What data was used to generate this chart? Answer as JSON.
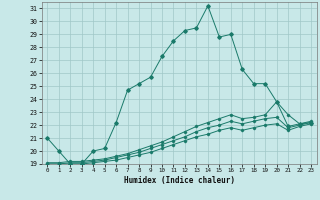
{
  "xlabel": "Humidex (Indice chaleur)",
  "ylabel": "",
  "bg_color": "#c8e8e8",
  "grid_color": "#a0c8c8",
  "line_color": "#1a7a6a",
  "xlim": [
    -0.5,
    23.5
  ],
  "ylim": [
    19,
    31.5
  ],
  "xticks": [
    0,
    1,
    2,
    3,
    4,
    5,
    6,
    7,
    8,
    9,
    10,
    11,
    12,
    13,
    14,
    15,
    16,
    17,
    18,
    19,
    20,
    21,
    22,
    23
  ],
  "yticks": [
    19,
    20,
    21,
    22,
    23,
    24,
    25,
    26,
    27,
    28,
    29,
    30,
    31
  ],
  "series1_x": [
    0,
    1,
    2,
    3,
    4,
    5,
    6,
    7,
    8,
    9,
    10,
    11,
    12,
    13,
    14,
    15,
    16,
    17,
    18,
    19,
    20,
    21,
    22,
    23
  ],
  "series1_y": [
    21,
    20,
    19,
    19,
    20,
    20.2,
    22.2,
    24.7,
    25.2,
    25.7,
    27.3,
    28.5,
    29.3,
    29.5,
    31.2,
    28.8,
    29.0,
    26.3,
    25.2,
    25.2,
    23.8,
    21.9,
    22.1,
    22.2
  ],
  "series2_x": [
    0,
    1,
    2,
    3,
    4,
    5,
    6,
    7,
    8,
    9,
    10,
    11,
    12,
    13,
    14,
    15,
    16,
    17,
    18,
    19,
    20,
    21,
    22,
    23
  ],
  "series2_y": [
    19.1,
    19.1,
    19.2,
    19.2,
    19.3,
    19.4,
    19.6,
    19.8,
    20.1,
    20.4,
    20.7,
    21.1,
    21.5,
    21.9,
    22.2,
    22.5,
    22.8,
    22.5,
    22.6,
    22.8,
    23.8,
    22.8,
    22.1,
    22.3
  ],
  "series3_x": [
    0,
    1,
    2,
    3,
    4,
    5,
    6,
    7,
    8,
    9,
    10,
    11,
    12,
    13,
    14,
    15,
    16,
    17,
    18,
    19,
    20,
    21,
    22,
    23
  ],
  "series3_y": [
    19.0,
    19.0,
    19.1,
    19.1,
    19.2,
    19.3,
    19.5,
    19.7,
    19.9,
    20.2,
    20.5,
    20.8,
    21.1,
    21.5,
    21.8,
    22.0,
    22.3,
    22.1,
    22.3,
    22.5,
    22.6,
    21.8,
    22.0,
    22.2
  ],
  "series4_x": [
    0,
    1,
    2,
    3,
    4,
    5,
    6,
    7,
    8,
    9,
    10,
    11,
    12,
    13,
    14,
    15,
    16,
    17,
    18,
    19,
    20,
    21,
    22,
    23
  ],
  "series4_y": [
    19.0,
    19.0,
    19.0,
    19.0,
    19.1,
    19.2,
    19.3,
    19.5,
    19.7,
    19.9,
    20.2,
    20.5,
    20.8,
    21.1,
    21.3,
    21.6,
    21.8,
    21.6,
    21.8,
    22.0,
    22.1,
    21.6,
    21.9,
    22.1
  ]
}
